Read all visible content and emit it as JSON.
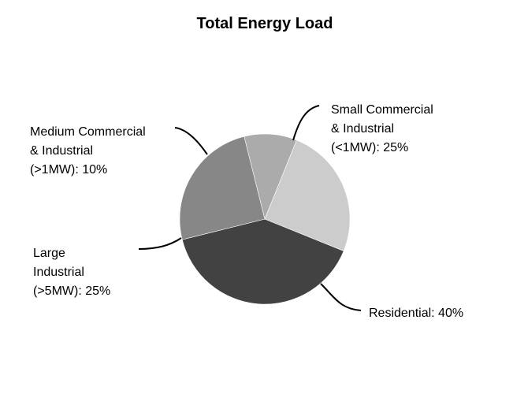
{
  "chart_data": {
    "type": "pie",
    "title": "Total Energy Load",
    "legend": "none",
    "slices": [
      {
        "label_lines": [
          "Residential: 40%"
        ],
        "value": 40,
        "color": "#424242"
      },
      {
        "label_lines": [
          "Large",
          "Industrial",
          "(>5MW): 25%"
        ],
        "value": 25,
        "color": "#878787"
      },
      {
        "label_lines": [
          "Medium Commercial",
          "& Industrial",
          "(>1MW): 10%"
        ],
        "value": 10,
        "color": "#ababab"
      },
      {
        "label_lines": [
          "Small Commercial",
          "& Industrial",
          "(<1MW): 25%"
        ],
        "value": 25,
        "color": "#cccccc"
      }
    ]
  }
}
